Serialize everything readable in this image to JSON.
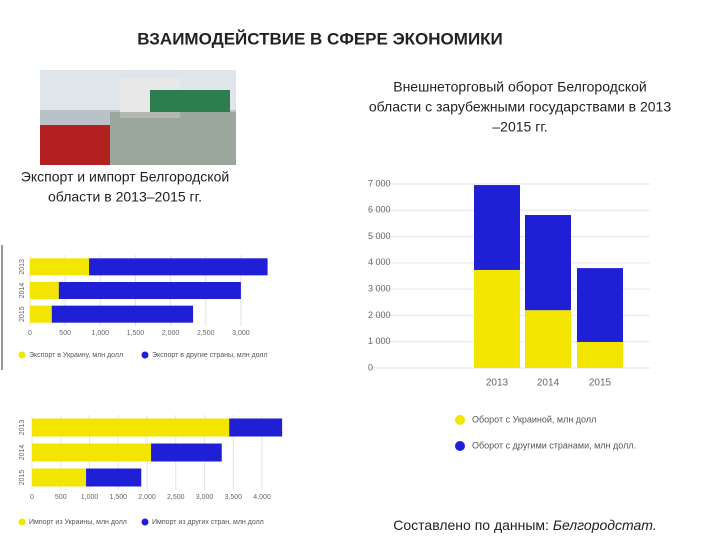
{
  "title": "ВЗАИМОДЕЙСТВИЕ В СФЕРЕ ЭКОНОМИКИ",
  "caption_right": [
    "Внешнеторговый оборот Белгородской",
    "области с зарубежными государствами в 2013",
    "–2015 гг."
  ],
  "caption_left": [
    "Экспорт и импорт Белгородской",
    "области в 2013–2015 гг."
  ],
  "source": {
    "text": "Составлено по данным: ",
    "emphasis": "Белгородстат."
  },
  "chart_data": [
    {
      "type": "bar",
      "horizontal": true,
      "stacked": true,
      "categories": [
        "2013",
        "2014",
        "2015"
      ],
      "series": [
        {
          "name": "Экспорт в Украину, млн долл",
          "color": "#f2e500",
          "values": [
            840,
            410,
            310
          ]
        },
        {
          "name": "Экспорт в другие страны, млн долл",
          "color": "#1f1fd6",
          "values": [
            2540,
            2590,
            2010
          ]
        }
      ],
      "xlim": [
        0,
        3400
      ],
      "xticks": [
        0,
        500,
        {
          "value": 1000,
          "label": "1,000"
        },
        {
          "value": 1500,
          "label": "1,500"
        },
        {
          "value": 2000,
          "label": "2,000"
        },
        {
          "value": 2500,
          "label": "2,500"
        },
        {
          "value": 3000,
          "label": "3,000"
        }
      ],
      "grid": true
    },
    {
      "type": "bar",
      "horizontal": true,
      "stacked": true,
      "categories": [
        "2013",
        "2014",
        "2015"
      ],
      "series": [
        {
          "name": "Импорт из Украины, млн долл",
          "color": "#f2e500",
          "values": [
            3430,
            2070,
            940
          ]
        },
        {
          "name": "Импорт из других стран, млн долл",
          "color": "#1f1fd6",
          "values": [
            920,
            1230,
            960
          ]
        }
      ],
      "xlim": [
        0,
        4400
      ],
      "xticks": [
        0,
        500,
        {
          "value": 1000,
          "label": "1,000"
        },
        {
          "value": 1500,
          "label": "1,500"
        },
        {
          "value": 2000,
          "label": "2,000"
        },
        {
          "value": 2500,
          "label": "2,500"
        },
        {
          "value": 3000,
          "label": "3,000"
        },
        {
          "value": 3500,
          "label": "3,500"
        },
        {
          "value": 4000,
          "label": "4,000"
        }
      ],
      "grid": true
    },
    {
      "type": "bar",
      "horizontal": false,
      "stacked": true,
      "categories": [
        "2013",
        "2014",
        "2015"
      ],
      "series": [
        {
          "name": "Оборот с Украиной, млн долл",
          "color": "#f2e500",
          "values": [
            3730,
            2200,
            990
          ]
        },
        {
          "name": "Оборот с другими странами, млн долл.",
          "color": "#1f1fd6",
          "values": [
            3230,
            3620,
            2810
          ]
        }
      ],
      "ylim": [
        0,
        7000
      ],
      "yticks": [
        0,
        {
          "value": 1000,
          "label": "1 000"
        },
        {
          "value": 2000,
          "label": "2 000"
        },
        {
          "value": 3000,
          "label": "3 000"
        },
        {
          "value": 4000,
          "label": "4 000"
        },
        {
          "value": 5000,
          "label": "5 000"
        },
        {
          "value": 6000,
          "label": "6 000"
        },
        {
          "value": 7000,
          "label": "7 000"
        }
      ],
      "grid": true
    }
  ]
}
